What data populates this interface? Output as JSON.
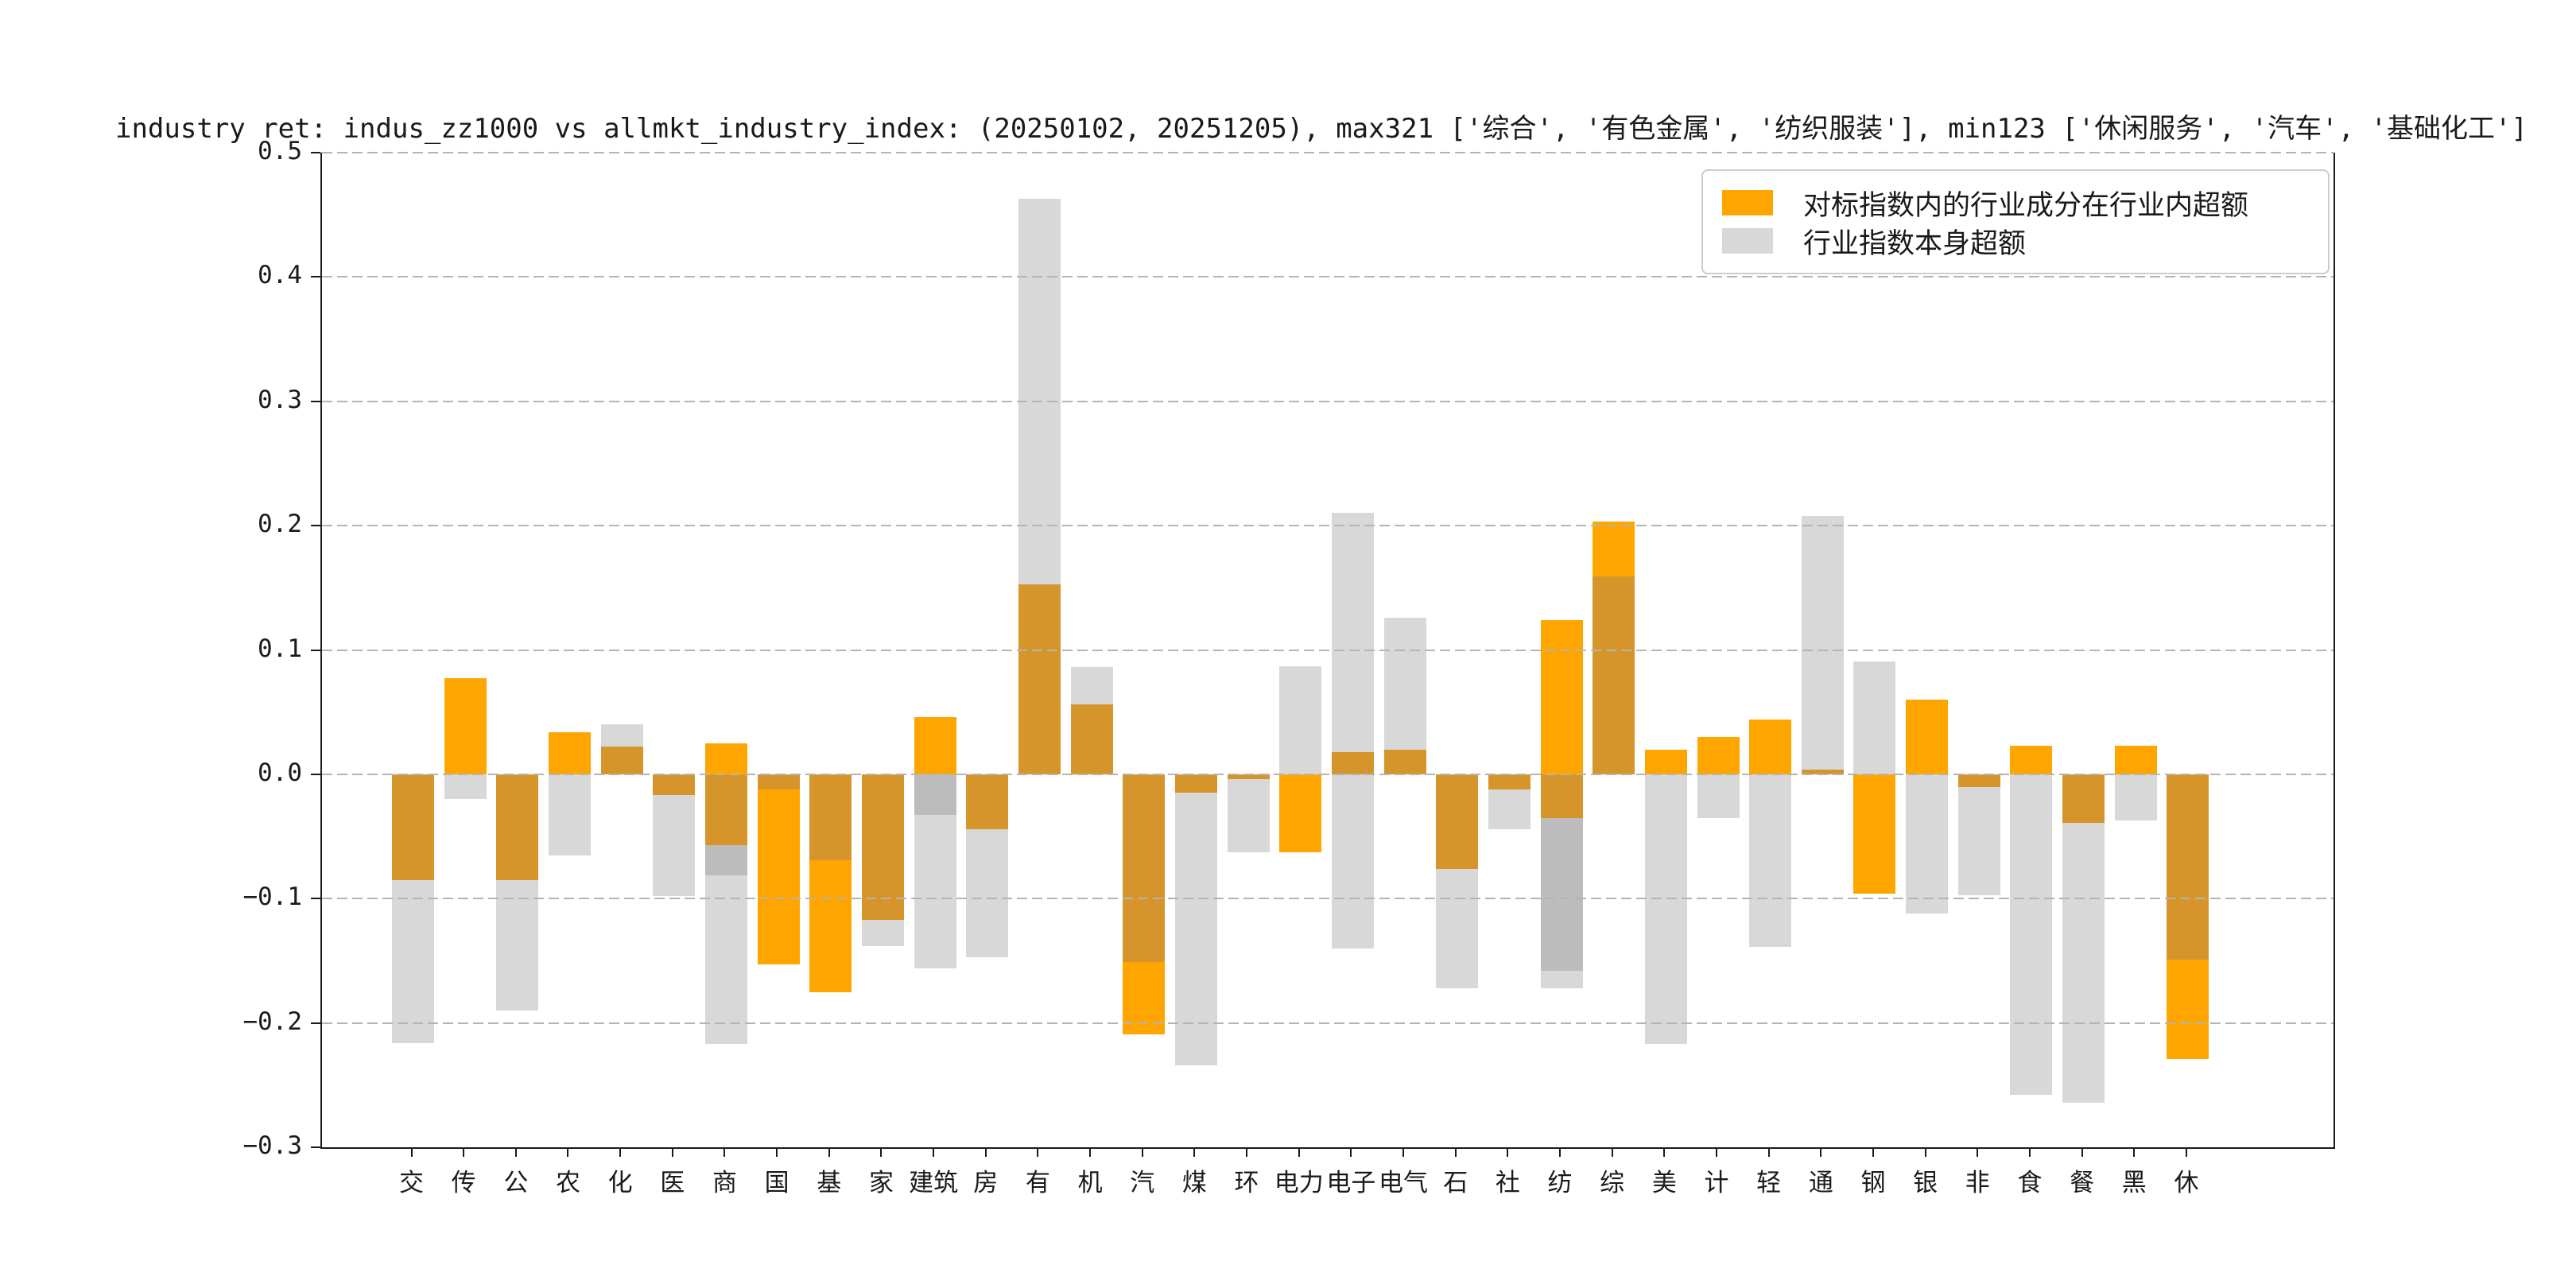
{
  "chart_title": "industry ret: indus_zz1000 vs allmkt_industry_index: (20250102, 20251205), max321 ['综合', '有色金属', '纺织服装'], min123 ['休闲服务', '汽车', '基础化工']",
  "legend": {
    "items": [
      {
        "label": "对标指数内的行业成分在行业内超额",
        "color": "#FFA500"
      },
      {
        "label": "行业指数本身超额",
        "color": "#D8D8D8"
      }
    ]
  },
  "palette": {
    "O": "#FFA500",
    "A": "#D6952B",
    "M": "#BCBCBC",
    "L": "#D8D8D8"
  },
  "axes": {
    "ylim": [
      -0.3,
      0.5
    ],
    "yticks": [
      0.5,
      0.4,
      0.3,
      0.2,
      0.1,
      0.0,
      -0.1,
      -0.2,
      -0.3
    ],
    "ytick_labels": [
      "0.5",
      "0.4",
      "0.3",
      "0.2",
      "0.1",
      "0.0",
      "−0.1",
      "−0.2",
      "−0.3"
    ],
    "grid": true
  },
  "chart_data": {
    "type": "bar",
    "title": "industry ret: indus_zz1000 vs allmkt_industry_index: (20250102, 20251205), max321 ['综合', '有色金属', '纺织服装'], min123 ['休闲服务', '汽车', '基础化工']",
    "xlabel": "",
    "ylabel": "",
    "ylim": [
      -0.3,
      0.5
    ],
    "legend_position": "upper right",
    "categories": [
      "交",
      "传",
      "公",
      "农",
      "化",
      "医",
      "商",
      "国",
      "基",
      "家",
      "建筑",
      "房",
      "有",
      "机",
      "汽",
      "煤",
      "环",
      "电力",
      "电子",
      "电气",
      "石",
      "社",
      "纺",
      "综",
      "美",
      "计",
      "轻",
      "通",
      "钢",
      "银",
      "非",
      "食",
      "餐",
      "黑",
      "休"
    ],
    "series": [
      {
        "name": "对标指数内的行业成分在行业内超额",
        "values": [
          -0.085,
          0.077,
          -0.085,
          0.034,
          0.022,
          -0.017,
          0.025,
          -0.153,
          -0.175,
          -0.117,
          0.046,
          -0.044,
          0.153,
          0.056,
          -0.209,
          -0.015,
          -0.004,
          -0.063,
          0.018,
          0.02,
          -0.076,
          -0.012,
          0.124,
          0.203,
          0.02,
          0.03,
          0.044,
          0.004,
          -0.096,
          0.06,
          -0.01,
          0.023,
          -0.039,
          0.023,
          -0.229
        ]
      },
      {
        "name": "行业指数本身超额",
        "values": [
          -0.216,
          -0.02,
          -0.19,
          -0.065,
          0.04,
          -0.098,
          -0.217,
          -0.012,
          -0.069,
          -0.138,
          -0.156,
          -0.147,
          0.463,
          0.086,
          -0.151,
          -0.234,
          -0.063,
          0.087,
          0.21,
          0.126,
          -0.172,
          -0.044,
          -0.172,
          0.159,
          -0.217,
          -0.035,
          -0.139,
          0.208,
          0.091,
          -0.112,
          -0.097,
          -0.258,
          -0.264,
          -0.037,
          -0.149
        ]
      }
    ],
    "annotations": {
      "max321": [
        "综合",
        "有色金属",
        "纺织服装"
      ],
      "min123": [
        "休闲服务",
        "汽车",
        "基础化工"
      ]
    },
    "bar_segments": [
      [
        [
          "A",
          0,
          -0.085
        ],
        [
          "L",
          -0.085,
          -0.216
        ]
      ],
      [
        [
          "O",
          0,
          0.077
        ],
        [
          "L",
          0,
          -0.02
        ]
      ],
      [
        [
          "A",
          0,
          -0.085
        ],
        [
          "L",
          -0.085,
          -0.19
        ]
      ],
      [
        [
          "O",
          0,
          0.034
        ],
        [
          "L",
          0,
          -0.065
        ]
      ],
      [
        [
          "A",
          0,
          0.022
        ],
        [
          "L",
          0.022,
          0.04
        ]
      ],
      [
        [
          "A",
          0,
          -0.017
        ],
        [
          "L",
          -0.017,
          -0.098
        ]
      ],
      [
        [
          "O",
          0,
          0.025
        ],
        [
          "A",
          0,
          -0.057
        ],
        [
          "M",
          -0.057,
          -0.081
        ],
        [
          "L",
          -0.081,
          -0.217
        ]
      ],
      [
        [
          "A",
          0,
          -0.012
        ],
        [
          "O",
          -0.012,
          -0.153
        ]
      ],
      [
        [
          "A",
          0,
          -0.069
        ],
        [
          "O",
          -0.069,
          -0.175
        ]
      ],
      [
        [
          "A",
          0,
          -0.117
        ],
        [
          "L",
          -0.117,
          -0.138
        ]
      ],
      [
        [
          "O",
          0,
          0.046
        ],
        [
          "M",
          0,
          -0.033
        ],
        [
          "L",
          -0.033,
          -0.156
        ]
      ],
      [
        [
          "A",
          0,
          -0.044
        ],
        [
          "L",
          -0.044,
          -0.147
        ]
      ],
      [
        [
          "A",
          0,
          0.153
        ],
        [
          "L",
          0.153,
          0.463
        ]
      ],
      [
        [
          "A",
          0,
          0.056
        ],
        [
          "L",
          0.056,
          0.086
        ]
      ],
      [
        [
          "A",
          0,
          -0.151
        ],
        [
          "O",
          -0.151,
          -0.209
        ]
      ],
      [
        [
          "A",
          0,
          -0.015
        ],
        [
          "L",
          -0.015,
          -0.234
        ]
      ],
      [
        [
          "A",
          0,
          -0.004
        ],
        [
          "L",
          -0.004,
          -0.063
        ]
      ],
      [
        [
          "L",
          0,
          0.087
        ],
        [
          "O",
          0,
          -0.063
        ]
      ],
      [
        [
          "A",
          0,
          0.018
        ],
        [
          "L",
          0.018,
          0.21
        ],
        [
          "L",
          0,
          -0.14
        ]
      ],
      [
        [
          "A",
          0,
          0.02
        ],
        [
          "L",
          0.02,
          0.126
        ]
      ],
      [
        [
          "A",
          0,
          -0.076
        ],
        [
          "L",
          -0.076,
          -0.172
        ]
      ],
      [
        [
          "A",
          0,
          -0.012
        ],
        [
          "L",
          -0.012,
          -0.044
        ]
      ],
      [
        [
          "O",
          0,
          0.124
        ],
        [
          "A",
          0,
          -0.035
        ],
        [
          "M",
          -0.035,
          -0.158
        ],
        [
          "L",
          -0.158,
          -0.172
        ]
      ],
      [
        [
          "A",
          0,
          0.159
        ],
        [
          "O",
          0.159,
          0.203
        ]
      ],
      [
        [
          "O",
          0,
          0.02
        ],
        [
          "L",
          0,
          -0.217
        ]
      ],
      [
        [
          "O",
          0,
          0.03
        ],
        [
          "L",
          0,
          -0.035
        ]
      ],
      [
        [
          "O",
          0,
          0.044
        ],
        [
          "L",
          0,
          -0.139
        ]
      ],
      [
        [
          "A",
          0,
          0.004
        ],
        [
          "L",
          0.004,
          0.208
        ]
      ],
      [
        [
          "L",
          0,
          0.091
        ],
        [
          "O",
          0,
          -0.096
        ]
      ],
      [
        [
          "O",
          0,
          0.06
        ],
        [
          "L",
          0,
          -0.112
        ]
      ],
      [
        [
          "A",
          0,
          -0.01
        ],
        [
          "L",
          -0.01,
          -0.097
        ]
      ],
      [
        [
          "O",
          0,
          0.023
        ],
        [
          "L",
          0,
          -0.258
        ]
      ],
      [
        [
          "A",
          0,
          -0.039
        ],
        [
          "L",
          -0.039,
          -0.264
        ]
      ],
      [
        [
          "O",
          0,
          0.023
        ],
        [
          "L",
          0,
          -0.037
        ]
      ],
      [
        [
          "A",
          0,
          -0.149
        ],
        [
          "O",
          -0.149,
          -0.229
        ]
      ]
    ]
  }
}
